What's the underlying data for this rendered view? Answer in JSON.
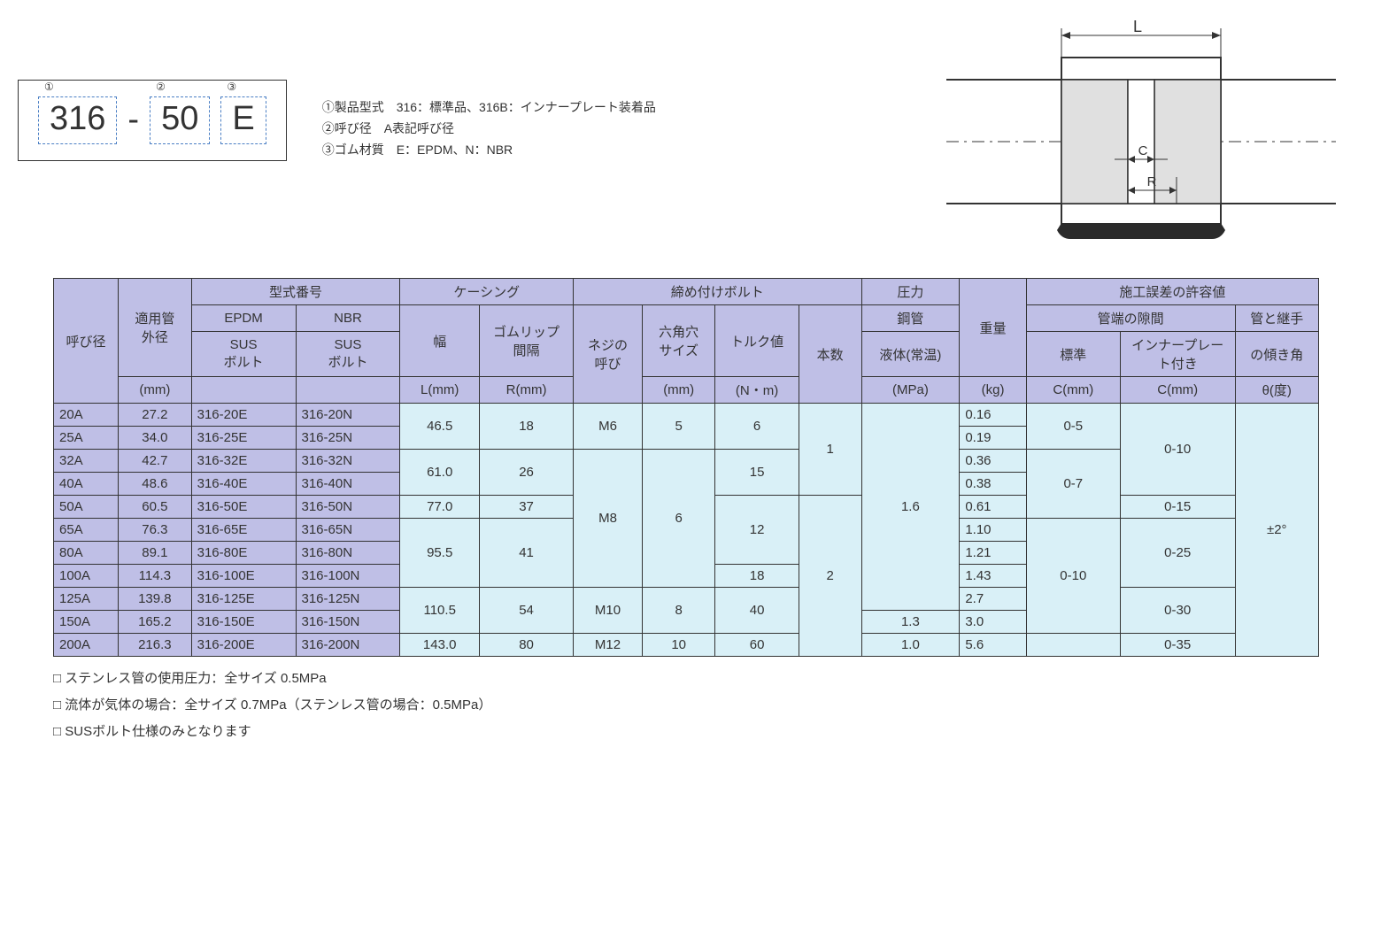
{
  "code_example": {
    "cells": [
      {
        "sup": "①",
        "text": "316"
      },
      {
        "sup": "②",
        "text": "50"
      },
      {
        "sup": "③",
        "text": "E"
      }
    ],
    "dash": "-"
  },
  "legend": {
    "line1": "①製品型式　316：標準品、316B：インナープレート装着品",
    "line2": "②呼び径　A表記呼び径",
    "line3": "③ゴム材質　E：EPDM、N：NBR"
  },
  "diagram": {
    "labels": {
      "L": "L",
      "C": "C",
      "R": "R"
    },
    "colors": {
      "stroke": "#333333",
      "fill_body": "#e0e0e0",
      "fill_rubber": "#2b2b2b"
    }
  },
  "headers": {
    "nominal": "呼び径",
    "pipe_od": "適用管\n外径",
    "model_no": "型式番号",
    "epdm": "EPDM",
    "nbr": "NBR",
    "sus_bolt": "SUS\nボルト",
    "mm": "(mm)",
    "casing": "ケーシング",
    "width": "幅",
    "lip_gap": "ゴムリップ\n間隔",
    "L": "L(mm)",
    "R": "R(mm)",
    "bolts": "締め付けボルト",
    "thread": "ネジの\n呼び",
    "hex": "六角穴\nサイズ",
    "hex_mm": "(mm)",
    "torque": "トルク値",
    "torque_nm": "(N・m)",
    "qty": "本数",
    "pressure": "圧力",
    "steel": "鋼管",
    "liquid": "液体(常温)",
    "mpa": "(MPa)",
    "weight": "重量",
    "kg": "(kg)",
    "tolerance": "施工誤差の許容値",
    "gap": "管端の隙間",
    "std": "標準",
    "inner": "インナープレート付き",
    "Cmm": "C(mm)",
    "angle_head": "管と継手",
    "angle_sub": "の傾き角",
    "theta": "θ(度)"
  },
  "rows": [
    {
      "nom": "20A",
      "od": "27.2",
      "e": "316-20E",
      "n": "316-20N",
      "w": "0.16"
    },
    {
      "nom": "25A",
      "od": "34.0",
      "e": "316-25E",
      "n": "316-25N",
      "w": "0.19"
    },
    {
      "nom": "32A",
      "od": "42.7",
      "e": "316-32E",
      "n": "316-32N",
      "w": "0.36"
    },
    {
      "nom": "40A",
      "od": "48.6",
      "e": "316-40E",
      "n": "316-40N",
      "w": "0.38"
    },
    {
      "nom": "50A",
      "od": "60.5",
      "e": "316-50E",
      "n": "316-50N",
      "w": "0.61"
    },
    {
      "nom": "65A",
      "od": "76.3",
      "e": "316-65E",
      "n": "316-65N",
      "w": "1.10"
    },
    {
      "nom": "80A",
      "od": "89.1",
      "e": "316-80E",
      "n": "316-80N",
      "w": "1.21"
    },
    {
      "nom": "100A",
      "od": "114.3",
      "e": "316-100E",
      "n": "316-100N",
      "w": "1.43"
    },
    {
      "nom": "125A",
      "od": "139.8",
      "e": "316-125E",
      "n": "316-125N",
      "w": "2.7"
    },
    {
      "nom": "150A",
      "od": "165.2",
      "e": "316-150E",
      "n": "316-150N",
      "w": "3.0"
    },
    {
      "nom": "200A",
      "od": "216.3",
      "e": "316-200E",
      "n": "316-200N",
      "w": "5.6"
    }
  ],
  "merged": {
    "L1": "46.5",
    "R1": "18",
    "thread1": "M6",
    "hex1": "5",
    "tq1": "6",
    "L2": "61.0",
    "R2": "26",
    "tq2": "15",
    "L3": "77.0",
    "R3": "37",
    "L4": "95.5",
    "R4": "41",
    "tq3": "12",
    "tq4": "18",
    "L5": "110.5",
    "R5": "54",
    "thread3": "M10",
    "hex3": "8",
    "tq5": "40",
    "L6": "143.0",
    "R6": "80",
    "thread4": "M12",
    "hex4": "10",
    "tq6": "60",
    "thread2": "M8",
    "hex2": "6",
    "qty1": "1",
    "qty2": "2",
    "press1": "1.6",
    "press2": "1.3",
    "press3": "1.0",
    "gap1": "0-5",
    "gap2": "0-7",
    "gap3": "0-10",
    "ing1": "0-10",
    "ing2": "0-15",
    "ing3": "0-25",
    "ing4": "0-30",
    "ing5": "0-35",
    "angle": "±2°"
  },
  "notes": {
    "n1": "□ ステンレス管の使用圧力：全サイズ  0.5MPa",
    "n2": "□ 流体が気体の場合：全サイズ  0.7MPa（ステンレス管の場合：0.5MPa）",
    "n3": "□ SUSボルト仕様のみとなります"
  }
}
